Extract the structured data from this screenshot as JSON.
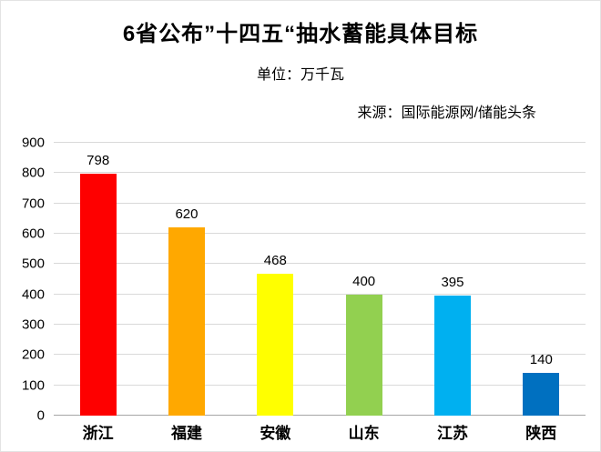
{
  "header": {
    "title": "6省公布”十四五“抽水蓄能具体目标",
    "unit_label": "单位：万千瓦",
    "source_label": "来源：国际能源网/储能头条"
  },
  "chart_data": {
    "type": "bar",
    "title": "6省公布”十四五“抽水蓄能具体目标",
    "subtitle": "单位：万千瓦",
    "source": "来源：国际能源网/储能头条",
    "categories": [
      "浙江",
      "福建",
      "安徽",
      "山东",
      "江苏",
      "陕西"
    ],
    "values": [
      798,
      620,
      468,
      400,
      395,
      140
    ],
    "bar_colors": [
      "#fe0000",
      "#ffa800",
      "#ffff00",
      "#92d050",
      "#00b0f0",
      "#0070c0"
    ],
    "xlabel": "",
    "ylabel": "",
    "ylim": [
      0,
      900
    ],
    "yticks": [
      0,
      100,
      200,
      300,
      400,
      500,
      600,
      700,
      800,
      900
    ],
    "grid": true,
    "legend_position": "none"
  }
}
